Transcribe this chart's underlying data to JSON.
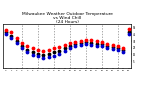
{
  "title": "Milwaukee Weather Outdoor Temperature\nvs Wind Chill\n(24 Hours)",
  "title_fontsize": 3.2,
  "background_color": "#ffffff",
  "grid_color": "#888888",
  "x_hours": [
    0,
    1,
    2,
    3,
    4,
    5,
    6,
    7,
    8,
    9,
    10,
    11,
    12,
    13,
    14,
    15,
    16,
    17,
    18,
    19,
    20,
    21,
    22,
    23
  ],
  "temp_outdoor": [
    52,
    48,
    40,
    32,
    27,
    24,
    22,
    20,
    22,
    24,
    26,
    29,
    32,
    34,
    35,
    37,
    36,
    35,
    33,
    31,
    29,
    27,
    25,
    53
  ],
  "wind_chill": [
    45,
    40,
    32,
    24,
    18,
    14,
    12,
    10,
    11,
    13,
    16,
    20,
    24,
    27,
    29,
    30,
    29,
    28,
    27,
    25,
    23,
    21,
    19,
    45
  ],
  "black_series": [
    48,
    43,
    35,
    27,
    22,
    18,
    16,
    14,
    16,
    18,
    20,
    24,
    28,
    30,
    32,
    33,
    32,
    31,
    30,
    28,
    26,
    24,
    22,
    49
  ],
  "temp_color": "#ff0000",
  "wind_color": "#0000cc",
  "black_color": "#000000",
  "dot_size": 3.0,
  "ylim": [
    -5,
    60
  ],
  "yticks": [
    5,
    15,
    25,
    35,
    45,
    55
  ],
  "ytick_labels": [
    "5",
    "15",
    "25",
    "35",
    "45",
    "55"
  ],
  "x_grid_positions": [
    3,
    6,
    9,
    12,
    15,
    18,
    21
  ],
  "xlim": [
    -0.5,
    23.5
  ]
}
